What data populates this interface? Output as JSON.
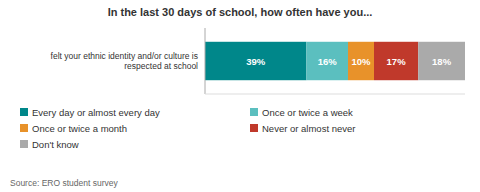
{
  "chart_data": {
    "type": "bar",
    "orientation": "horizontal",
    "stacked": true,
    "title": "In the last 30 days of school, how often have you...",
    "source": "Source: ERO student survey",
    "categories": [
      "felt your ethnic identity and/or culture is\nrespected at school"
    ],
    "series": [
      {
        "name": "Every day or almost every day",
        "color": "#00878A",
        "values": [
          39
        ],
        "value_labels": [
          "39%"
        ]
      },
      {
        "name": "Once or twice a week",
        "color": "#5BBFBF",
        "values": [
          16
        ],
        "value_labels": [
          "16%"
        ]
      },
      {
        "name": "Once or twice a month",
        "color": "#E8922A",
        "values": [
          10
        ],
        "value_labels": [
          "10%"
        ]
      },
      {
        "name": "Never or almost never",
        "color": "#C0392B",
        "values": [
          17
        ],
        "value_labels": [
          "17%"
        ]
      },
      {
        "name": "Don't know",
        "color": "#AAAAAA",
        "values": [
          18
        ],
        "value_labels": [
          "18%"
        ]
      }
    ],
    "xlim": [
      0,
      100
    ],
    "data_labels": true,
    "tick_labels": "y",
    "legend": "bottom"
  }
}
